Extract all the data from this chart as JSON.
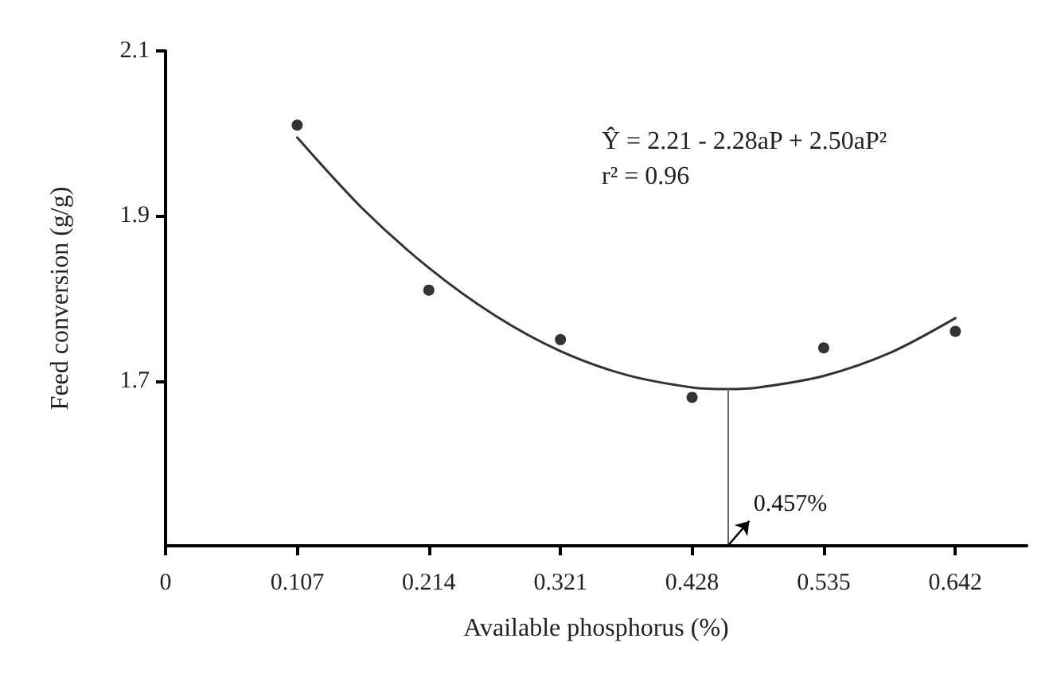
{
  "chart_data": {
    "type": "scatter",
    "xlabel": "Available phosphorus (%)",
    "ylabel": "Feed conversion (g/g)",
    "xlim": [
      0,
      0.7
    ],
    "xticks": [
      0,
      0.107,
      0.214,
      0.321,
      0.428,
      0.535,
      0.642
    ],
    "ylim": [
      1.5,
      2.1
    ],
    "yticks": [
      1.7,
      1.9,
      2.1
    ],
    "grid": false,
    "series": [
      {
        "type": "scatter",
        "color": "#000000",
        "marker": "circle",
        "x": [
          0.107,
          0.214,
          0.321,
          0.428,
          0.535,
          0.642
        ],
        "values": [
          2.01,
          1.81,
          1.75,
          1.68,
          1.74,
          1.76
        ]
      },
      {
        "type": "line",
        "color": "#333333",
        "marker": "none",
        "x": [
          0.107,
          0.16,
          0.214,
          0.268,
          0.321,
          0.375,
          0.428,
          0.457,
          0.482,
          0.535,
          0.589,
          0.642
        ],
        "values": [
          1.995,
          1.909,
          1.837,
          1.779,
          1.736,
          1.707,
          1.692,
          1.69,
          1.692,
          1.706,
          1.734,
          1.776
        ]
      }
    ],
    "ref_lines": [
      {
        "axis": "x",
        "value": 0.457,
        "label": "0.457%",
        "color": "#666666"
      }
    ],
    "annotations": [
      "Ŷ = 2.21 - 2.28aP + 2.50aP²",
      "r² = 0.96"
    ]
  }
}
